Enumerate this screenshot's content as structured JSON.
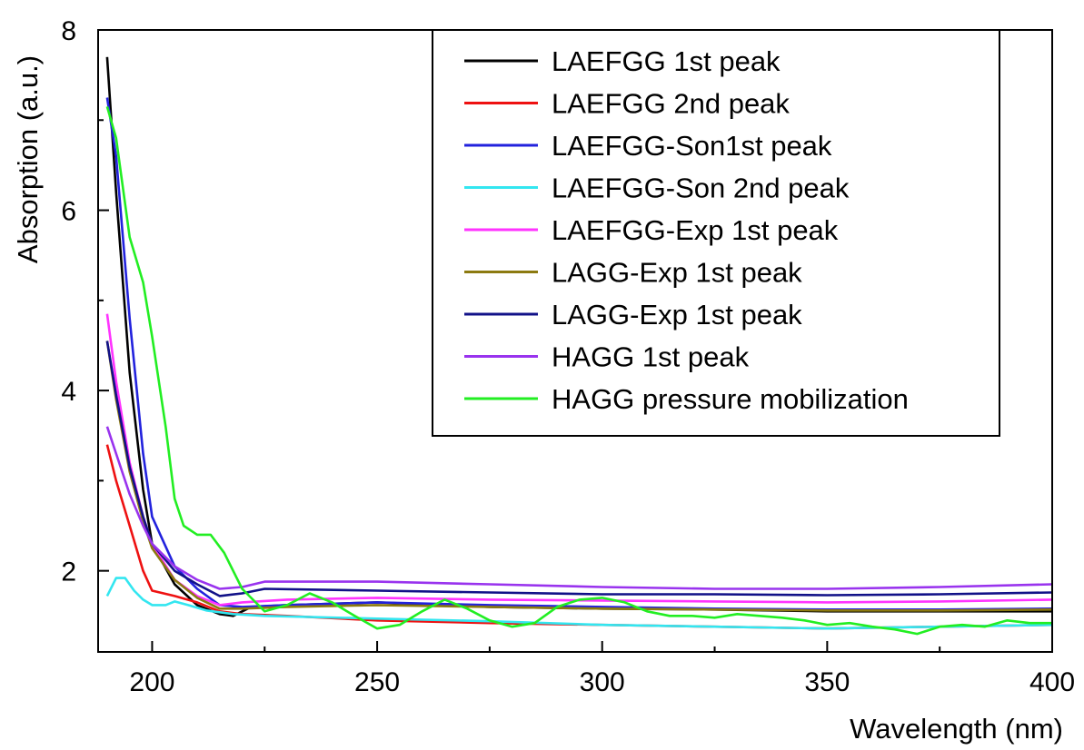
{
  "chart_data": {
    "type": "line",
    "title": "",
    "xlabel": "Wavelength (nm)",
    "ylabel": "Absorption (a.u.)",
    "xlim": [
      188,
      400
    ],
    "ylim": [
      1.1,
      8
    ],
    "xticks": [
      200,
      250,
      300,
      350,
      400
    ],
    "yticks": [
      2,
      4,
      6,
      8
    ],
    "grid": false,
    "legend_position": "top-right",
    "series": [
      {
        "name": "LAEFGG 1st peak",
        "color": "#000000",
        "x": [
          190,
          192,
          195,
          198,
          200,
          205,
          210,
          215,
          218,
          222,
          230,
          250,
          275,
          300,
          325,
          350,
          375,
          400
        ],
        "y": [
          7.7,
          6.2,
          4.2,
          2.9,
          2.3,
          1.85,
          1.62,
          1.52,
          1.5,
          1.6,
          1.62,
          1.65,
          1.6,
          1.58,
          1.57,
          1.55,
          1.55,
          1.55
        ]
      },
      {
        "name": "LAEFGG 2nd peak",
        "color": "#ee1111",
        "x": [
          190,
          192,
          195,
          198,
          200,
          205,
          210,
          215,
          220,
          230,
          250,
          275,
          300,
          325,
          350,
          375,
          400
        ],
        "y": [
          3.4,
          3.0,
          2.5,
          2.0,
          1.78,
          1.72,
          1.65,
          1.55,
          1.52,
          1.5,
          1.45,
          1.42,
          1.4,
          1.38,
          1.36,
          1.38,
          1.4
        ]
      },
      {
        "name": "LAEFGG-Son1st peak",
        "color": "#2222dd",
        "x": [
          190,
          192,
          195,
          198,
          200,
          205,
          210,
          215,
          220,
          230,
          250,
          275,
          300,
          325,
          350,
          375,
          400
        ],
        "y": [
          7.25,
          6.6,
          4.8,
          3.3,
          2.6,
          2.05,
          1.8,
          1.62,
          1.6,
          1.62,
          1.65,
          1.62,
          1.6,
          1.58,
          1.57,
          1.57,
          1.58
        ]
      },
      {
        "name": "LAEFGG-Son 2nd peak",
        "color": "#33e6f0",
        "x": [
          190,
          192,
          194,
          196,
          198,
          200,
          203,
          205,
          208,
          212,
          218,
          225,
          250,
          275,
          300,
          325,
          350,
          375,
          400
        ],
        "y": [
          1.72,
          1.92,
          1.92,
          1.78,
          1.68,
          1.62,
          1.62,
          1.66,
          1.62,
          1.56,
          1.52,
          1.5,
          1.47,
          1.44,
          1.4,
          1.38,
          1.36,
          1.38,
          1.4
        ]
      },
      {
        "name": "LAEFGG-Exp 1st peak",
        "color": "#ff33ff",
        "x": [
          190,
          192,
          195,
          198,
          200,
          205,
          210,
          215,
          220,
          230,
          250,
          275,
          300,
          325,
          350,
          375,
          400
        ],
        "y": [
          4.85,
          4.1,
          3.2,
          2.6,
          2.3,
          1.9,
          1.72,
          1.62,
          1.65,
          1.68,
          1.7,
          1.68,
          1.67,
          1.66,
          1.65,
          1.66,
          1.68
        ]
      },
      {
        "name": "LAGG-Exp 1st peak",
        "color": "#8c7a10",
        "x": [
          190,
          192,
          195,
          198,
          200,
          205,
          210,
          215,
          220,
          230,
          250,
          275,
          300,
          325,
          350,
          375,
          400
        ],
        "y": [
          4.55,
          3.9,
          3.1,
          2.55,
          2.25,
          1.9,
          1.7,
          1.58,
          1.58,
          1.6,
          1.62,
          1.6,
          1.58,
          1.57,
          1.56,
          1.56,
          1.57
        ]
      },
      {
        "name": "LAGG-Exp 1st peak",
        "color": "#111188",
        "x": [
          190,
          192,
          195,
          198,
          200,
          205,
          210,
          215,
          220,
          225,
          250,
          275,
          300,
          325,
          350,
          375,
          400
        ],
        "y": [
          4.55,
          3.95,
          3.15,
          2.6,
          2.3,
          2.0,
          1.85,
          1.72,
          1.75,
          1.8,
          1.78,
          1.76,
          1.74,
          1.74,
          1.73,
          1.74,
          1.76
        ]
      },
      {
        "name": "HAGG 1st peak",
        "color": "#9933ee",
        "x": [
          190,
          192,
          195,
          198,
          200,
          205,
          210,
          215,
          220,
          225,
          250,
          275,
          300,
          325,
          350,
          375,
          400
        ],
        "y": [
          3.6,
          3.3,
          2.85,
          2.5,
          2.3,
          2.05,
          1.9,
          1.8,
          1.82,
          1.88,
          1.88,
          1.85,
          1.82,
          1.8,
          1.8,
          1.82,
          1.85
        ]
      },
      {
        "name": "HAGG pressure mobilization",
        "color": "#22ee22",
        "x": [
          190,
          192,
          195,
          198,
          200,
          203,
          205,
          207,
          210,
          213,
          216,
          220,
          225,
          230,
          235,
          240,
          245,
          250,
          255,
          260,
          265,
          270,
          275,
          280,
          285,
          290,
          295,
          300,
          305,
          310,
          315,
          320,
          325,
          330,
          335,
          340,
          345,
          350,
          355,
          360,
          365,
          370,
          375,
          380,
          385,
          390,
          395,
          400
        ],
        "y": [
          7.15,
          6.8,
          5.7,
          5.2,
          4.6,
          3.6,
          2.8,
          2.5,
          2.4,
          2.4,
          2.2,
          1.8,
          1.55,
          1.62,
          1.75,
          1.65,
          1.5,
          1.36,
          1.4,
          1.55,
          1.68,
          1.58,
          1.45,
          1.38,
          1.42,
          1.6,
          1.68,
          1.7,
          1.65,
          1.55,
          1.5,
          1.5,
          1.48,
          1.52,
          1.5,
          1.48,
          1.45,
          1.4,
          1.42,
          1.38,
          1.35,
          1.3,
          1.38,
          1.4,
          1.38,
          1.45,
          1.42,
          1.42
        ]
      }
    ]
  }
}
